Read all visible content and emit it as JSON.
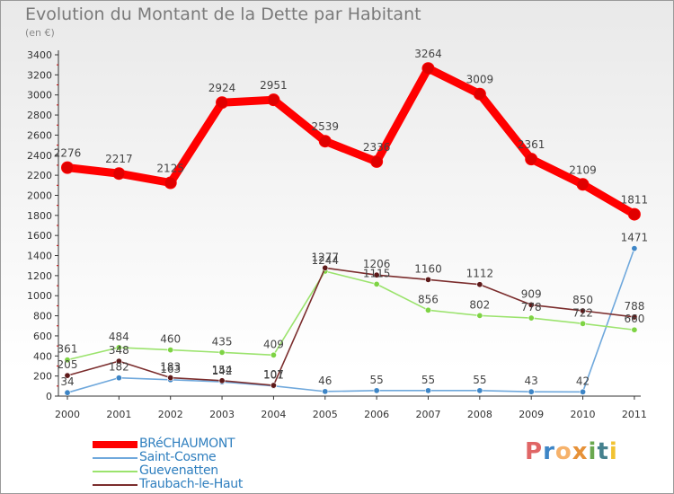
{
  "title": "Evolution du Montant de la Dette par Habitant",
  "subtitle": "(en €)",
  "colors": {
    "frame": "#9a9a9a",
    "axis": "#333333",
    "label": "#333333",
    "title": "#7a7a7a"
  },
  "chart_data": {
    "type": "line",
    "title": "Evolution du Montant de la Dette par Habitant",
    "subtitle": "(en €)",
    "xlabel": "",
    "ylabel": "",
    "x": [
      2000,
      2001,
      2002,
      2003,
      2004,
      2005,
      2006,
      2007,
      2008,
      2009,
      2010,
      2011
    ],
    "ylim": [
      0,
      3400
    ],
    "yticks": [
      0,
      200,
      400,
      600,
      800,
      1000,
      1200,
      1400,
      1600,
      1800,
      2000,
      2200,
      2400,
      2600,
      2800,
      3000,
      3200,
      3400
    ],
    "grid": false,
    "legend_position": "bottom-left",
    "series": [
      {
        "name": "BRéCHAUMONT",
        "color": "#ff0000",
        "marker": "#e00000",
        "values": [
          2276,
          2217,
          2125,
          2924,
          2951,
          2539,
          2336,
          3264,
          3009,
          2361,
          2109,
          1811
        ]
      },
      {
        "name": "Saint-Cosme",
        "color": "#6fa8dc",
        "marker": "#3d85c6",
        "values": [
          34,
          182,
          163,
          142,
          101,
          46,
          55,
          55,
          55,
          43,
          42,
          1471
        ]
      },
      {
        "name": "Guevenatten",
        "color": "#9be36d",
        "marker": "#7ed344",
        "values": [
          361,
          484,
          460,
          435,
          409,
          1244,
          1115,
          856,
          802,
          778,
          722,
          660
        ]
      },
      {
        "name": "Traubach-le-Haut",
        "color": "#7b2d2d",
        "marker": "#5e1a1a",
        "values": [
          205,
          348,
          183,
          154,
          107,
          1277,
          1206,
          1160,
          1112,
          909,
          850,
          788
        ]
      }
    ]
  },
  "legend": {
    "items": [
      {
        "label": "BRéCHAUMONT"
      },
      {
        "label": "Saint-Cosme"
      },
      {
        "label": "Guevenatten"
      },
      {
        "label": "Traubach-le-Haut"
      }
    ]
  },
  "logo": {
    "letters": [
      "P",
      "r",
      "o",
      "x",
      "i",
      "t",
      "i"
    ],
    "colors": [
      "#e06666",
      "#3d85c6",
      "#f6b26b",
      "#e69138",
      "#6aa84f",
      "#45818e",
      "#f1c232"
    ]
  }
}
